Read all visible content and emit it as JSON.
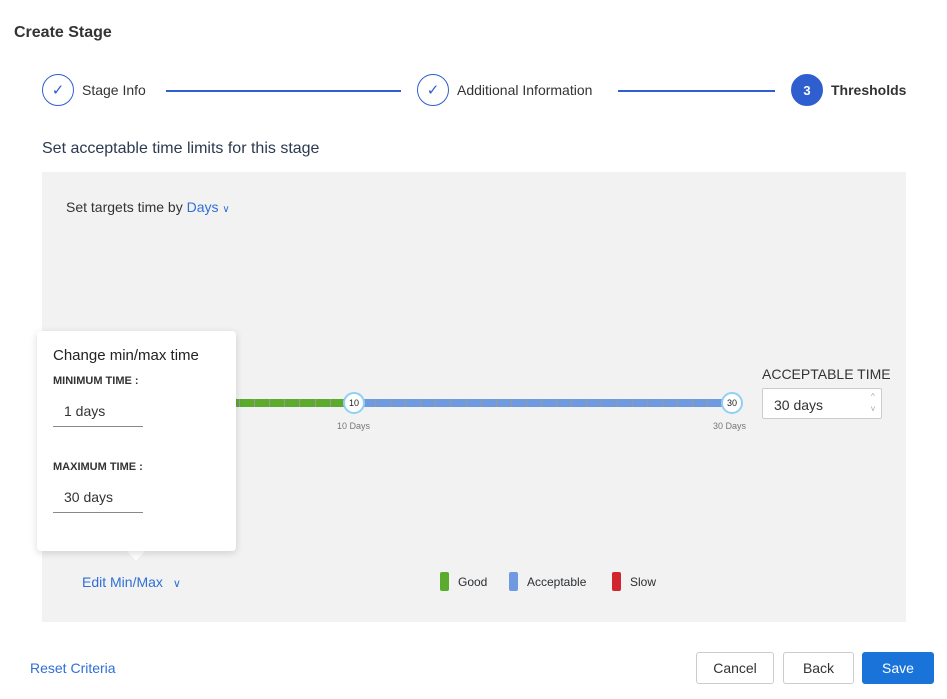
{
  "title": "Create Stage",
  "steps": [
    {
      "label": "Stage Info",
      "status": "done"
    },
    {
      "label": "Additional Information",
      "status": "done"
    },
    {
      "label": "Thresholds",
      "number": "3",
      "status": "active"
    }
  ],
  "subtitle": "Set acceptable time limits for this stage",
  "targets": {
    "prefix": "Set targets time by",
    "unit": "Days"
  },
  "slider": {
    "min": 1,
    "max": 30,
    "good_max": 10,
    "acceptable_max": 30,
    "knob1": "10",
    "knob2": "30",
    "label1": "10 Days",
    "label2": "30 Days",
    "colors": {
      "good": "#5aab2e",
      "acceptable": "#6f9ae0",
      "slow": "#d1262f"
    }
  },
  "acceptable": {
    "label": "ACCEPTABLE TIME",
    "value": "30 days"
  },
  "popover": {
    "title": "Change min/max time",
    "min_label": "MINIMUM TIME :",
    "min_value": "1 days",
    "max_label": "MAXIMUM TIME :",
    "max_value": "30 days"
  },
  "edit_minmax": "Edit Min/Max",
  "legend": [
    {
      "label": "Good",
      "color": "#5aab2e"
    },
    {
      "label": "Acceptable",
      "color": "#6f9ae0"
    },
    {
      "label": "Slow",
      "color": "#d1262f"
    }
  ],
  "footer": {
    "reset": "Reset Criteria",
    "cancel": "Cancel",
    "back": "Back",
    "save": "Save"
  }
}
